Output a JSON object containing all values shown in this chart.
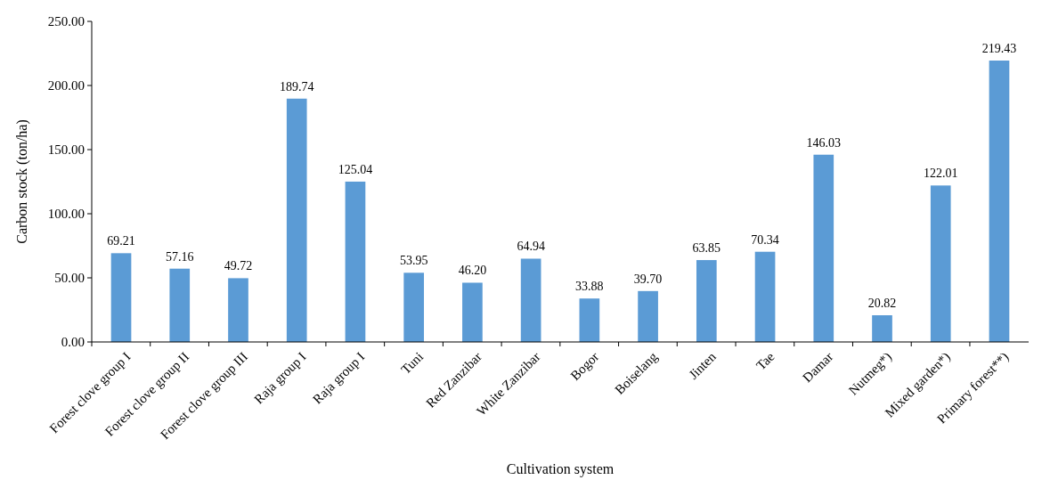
{
  "chart_data": {
    "type": "bar",
    "xlabel": "Cultivation system",
    "ylabel": "Carbon stock (ton/ha)",
    "categories": [
      "Forest clove group I",
      "Forest clove group II",
      "Forest clove group III",
      "Raja group I",
      "Raja group I",
      "Tuni",
      "Red Zanzibar",
      "White Zanzibar",
      "Bogor",
      "Boiselang",
      "Jinten",
      "Tae",
      "Damar",
      "Nutmeg*)",
      "Mixed garden*)",
      "Primary forest**)"
    ],
    "values": [
      69.21,
      57.16,
      49.72,
      189.74,
      125.04,
      53.95,
      46.2,
      64.94,
      33.88,
      39.7,
      63.85,
      70.34,
      146.03,
      20.82,
      122.01,
      219.43
    ],
    "value_labels": [
      "69.21",
      "57.16",
      "49.72",
      "189.74",
      "125.04",
      "53.95",
      "46.20",
      "64.94",
      "33.88",
      "39.70",
      "63.85",
      "70.34",
      "146.03",
      "20.82",
      "122.01",
      "219.43"
    ],
    "color": "#5b9bd5",
    "ylim": [
      0,
      250
    ],
    "yticks": [
      {
        "value": 0,
        "label": "0.00"
      },
      {
        "value": 50,
        "label": "50.00"
      },
      {
        "value": 100,
        "label": "100.00"
      },
      {
        "value": 150,
        "label": "150.00"
      },
      {
        "value": 200,
        "label": "200.00"
      },
      {
        "value": 250,
        "label": "250.00"
      }
    ],
    "grid": false
  }
}
